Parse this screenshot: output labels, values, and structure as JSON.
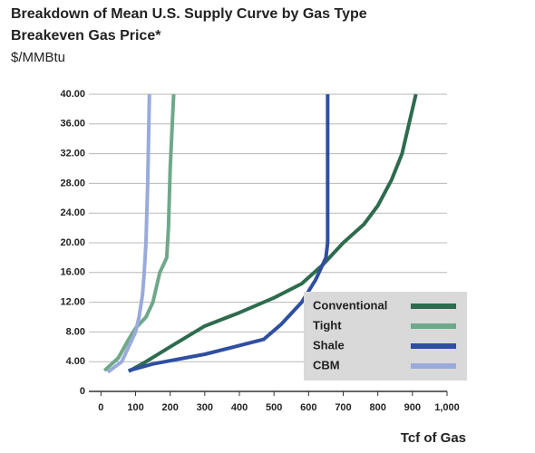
{
  "chart_data": {
    "type": "line",
    "title": "Breakdown of Mean U.S. Supply Curve by Gas Type",
    "subtitle": "Breakeven Gas Price*",
    "y_label": "$/MMBtu",
    "x_label": "Tcf of Gas",
    "xlim": [
      -35,
      1000
    ],
    "ylim": [
      0,
      40
    ],
    "xticks": [
      0,
      100,
      200,
      300,
      400,
      500,
      600,
      700,
      800,
      900,
      {
        "value": 1000,
        "label": "1,000"
      }
    ],
    "yticks": [
      {
        "value": 0,
        "label": "0"
      },
      {
        "value": 4,
        "label": "4.00"
      },
      {
        "value": 8,
        "label": "8.00"
      },
      {
        "value": 12,
        "label": "12.00"
      },
      {
        "value": 16,
        "label": "16.00"
      },
      {
        "value": 20,
        "label": "20.00"
      },
      {
        "value": 24,
        "label": "24.00"
      },
      {
        "value": 28,
        "label": "28.00"
      },
      {
        "value": 32,
        "label": "32.00"
      },
      {
        "value": 36,
        "label": "36.00"
      },
      {
        "value": 40,
        "label": "40.00"
      }
    ],
    "grid": true,
    "legend": "lower right",
    "series": [
      {
        "name": "Conventional",
        "color": "#2e6b4f",
        "x": [
          80,
          130,
          200,
          300,
          400,
          500,
          580,
          640,
          700,
          760,
          800,
          840,
          870,
          900,
          910
        ],
        "values": [
          2.7,
          4,
          6,
          8.8,
          10.6,
          12.6,
          14.5,
          17,
          20,
          22.5,
          25,
          28.5,
          32,
          38,
          40
        ]
      },
      {
        "name": "Tight",
        "color": "#6fa88a",
        "x": [
          10,
          50,
          80,
          100,
          130,
          150,
          160,
          170,
          190,
          195,
          200,
          210
        ],
        "values": [
          2.8,
          4.5,
          7,
          8.5,
          10,
          12,
          14,
          16,
          18,
          22,
          30,
          40
        ]
      },
      {
        "name": "Shale",
        "color": "#2f4fa0",
        "x": [
          80,
          150,
          300,
          470,
          520,
          580,
          620,
          650,
          655,
          655
        ],
        "values": [
          2.8,
          3.7,
          5,
          7,
          9,
          12,
          15,
          18,
          20,
          40
        ]
      },
      {
        "name": "CBM",
        "color": "#99aadb",
        "x": [
          20,
          60,
          80,
          100,
          110,
          120,
          125,
          130,
          135,
          140
        ],
        "values": [
          2.6,
          4,
          6,
          8,
          10,
          13,
          16,
          20,
          28,
          40
        ]
      }
    ]
  }
}
